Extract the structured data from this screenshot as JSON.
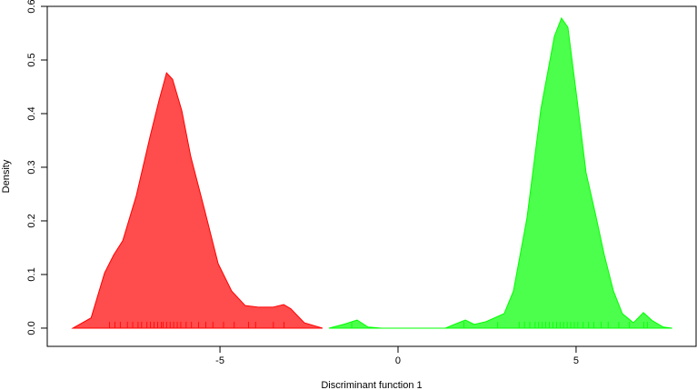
{
  "chart_data": {
    "type": "density",
    "x_label": "Discriminant function 1",
    "y_label": "Density",
    "xlim": [
      -9.85,
      8.37
    ],
    "ylim": [
      -0.034,
      0.6
    ],
    "xticks": [
      -5,
      0,
      5
    ],
    "yticks": [
      {
        "value": 0,
        "label": "0.0"
      },
      0.1,
      0.2,
      0.3,
      0.4,
      0.5,
      0.6
    ],
    "series": [
      {
        "color": "#ff0000",
        "fill": "#ff4c4c",
        "x": [
          -9.13,
          -8.62,
          -8.24,
          -7.98,
          -7.73,
          -7.35,
          -6.96,
          -6.71,
          -6.5,
          -6.33,
          -6.07,
          -5.82,
          -5.43,
          -5.05,
          -4.67,
          -4.29,
          -3.9,
          -3.52,
          -3.21,
          -3.01,
          -2.63,
          -2.12
        ],
        "values": [
          0,
          0.019,
          0.103,
          0.137,
          0.163,
          0.247,
          0.358,
          0.425,
          0.476,
          0.464,
          0.405,
          0.32,
          0.22,
          0.12,
          0.069,
          0.042,
          0.039,
          0.039,
          0.044,
          0.036,
          0.01,
          0
        ],
        "rug": [
          -8.1,
          -7.95,
          -7.8,
          -7.6,
          -7.45,
          -7.3,
          -7.2,
          -7.05,
          -6.95,
          -6.85,
          -6.75,
          -6.65,
          -6.6,
          -6.5,
          -6.4,
          -6.3,
          -6.2,
          -6.1,
          -5.95,
          -5.8,
          -5.6,
          -5.4,
          -5.2,
          -4.9,
          -4.6,
          -4.2,
          -4.0,
          -3.5,
          -3.2
        ]
      },
      {
        "color": "#00ff00",
        "fill": "#4cff4c",
        "x": [
          -1.94,
          -1.48,
          -1.15,
          -0.84,
          -0.46,
          1.33,
          1.58,
          1.89,
          2.14,
          2.47,
          2.98,
          3.24,
          3.62,
          4.01,
          4.39,
          4.59,
          4.77,
          5.03,
          5.28,
          5.54,
          5.79,
          6.05,
          6.3,
          6.61,
          6.89,
          7.14,
          7.45,
          7.7
        ],
        "values": [
          0,
          0.008,
          0.015,
          0.002,
          0,
          0,
          0.007,
          0.015,
          0.007,
          0.012,
          0.027,
          0.069,
          0.205,
          0.408,
          0.544,
          0.578,
          0.561,
          0.425,
          0.29,
          0.214,
          0.137,
          0.069,
          0.027,
          0.01,
          0.029,
          0.014,
          0.002,
          0
        ],
        "rug": [
          -1.3,
          1.85,
          2.8,
          3.4,
          3.55,
          3.7,
          3.85,
          3.95,
          4.05,
          4.15,
          4.25,
          4.35,
          4.45,
          4.55,
          4.65,
          4.75,
          4.85,
          4.95,
          5.05,
          5.2,
          5.35,
          5.5,
          5.7,
          5.9,
          6.2,
          6.5,
          6.9,
          7.0
        ]
      }
    ]
  }
}
